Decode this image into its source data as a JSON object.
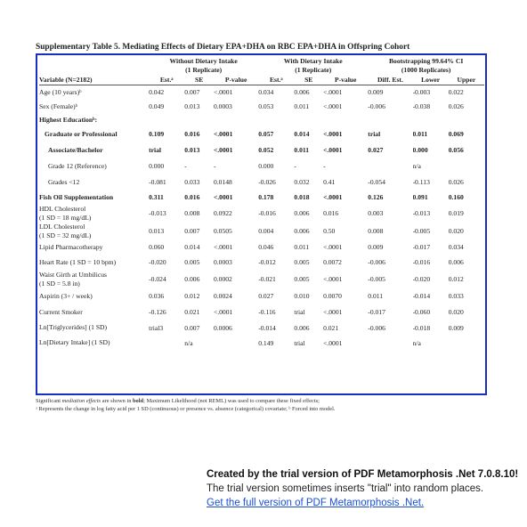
{
  "title": "Supplementary Table 5. Mediating Effects of Dietary EPA+DHA on RBC EPA+DHA in Offspring Cohort",
  "groups": [
    "Without Dietary Intake",
    "(1 Replicate)",
    "With Dietary Intake",
    "(1 Replicate)",
    "Bootstrapping 99.64% CI",
    "(1000 Replicates)"
  ],
  "columns": [
    "Variable (N=2182)",
    "Est.ᵃ",
    "SE",
    "P-value",
    "Est.ᵃ",
    "SE",
    "P-value",
    "Diff. Est.",
    "Lower",
    "Upper"
  ],
  "rows": [
    {
      "cells": [
        "Age (10 years)ᵇ",
        "0.042",
        "0.007",
        "<.0001",
        "0.034",
        "0.006",
        "<.0001",
        "0.009",
        "-0.003",
        "0.022"
      ]
    },
    {
      "cells": [
        "Sex (Female)ᵇ",
        "0.049",
        "0.013",
        "0.0003",
        "0.053",
        "0.011",
        "<.0001",
        "-0.006",
        "-0.038",
        "0.026"
      ]
    },
    {
      "cells": [
        "Highest Educationᵇ:",
        "",
        "",
        "",
        "",
        "",
        "",
        "",
        "",
        ""
      ],
      "bold": true
    },
    {
      "cells": [
        "Graduate or Professional",
        "0.109",
        "0.016",
        "<.0001",
        "0.057",
        "0.014",
        "<.0001",
        "trial",
        "0.011",
        "0.069"
      ],
      "bold": true,
      "indent": 1
    },
    {
      "cells": [
        "Associate/Bachelor",
        "trial",
        "0.013",
        "<.0001",
        "0.052",
        "0.011",
        "<.0001",
        "0.027",
        "0.000",
        "0.056"
      ],
      "bold": true,
      "indent": 2
    },
    {
      "cells": [
        "Grade 12 (Reference)",
        "0.000",
        "-",
        "-",
        "0.000",
        "-",
        "-",
        "",
        "n/a",
        ""
      ],
      "indent": 2
    },
    {
      "cells": [
        "Grades <12",
        "-0.081",
        "0.033",
        "0.0148",
        "-0.026",
        "0.032",
        "0.41",
        "-0.054",
        "-0.113",
        "0.026"
      ],
      "indent": 2
    },
    {
      "cells": [
        "Fish Oil Supplementation",
        "0.311",
        "0.016",
        "<.0001",
        "0.178",
        "0.018",
        "<.0001",
        "0.126",
        "0.091",
        "0.160"
      ],
      "bold": true
    },
    {
      "cells": [
        "HDL Cholesterol\n   (1 SD = 18 mg/dL)",
        "-0.013",
        "0.008",
        "0.0922",
        "-0.016",
        "0.006",
        "0.016",
        "0.003",
        "-0.013",
        "0.019"
      ]
    },
    {
      "cells": [
        "LDL Cholesterol\n   (1 SD = 32 mg/dL)",
        "0.013",
        "0.007",
        "0.0505",
        "0.004",
        "0.006",
        "0.50",
        "0.008",
        "-0.005",
        "0.020"
      ]
    },
    {
      "cells": [
        "Lipid Pharmacotherapy",
        "0.060",
        "0.014",
        "<.0001",
        "0.046",
        "0.011",
        "<.0001",
        "0.009",
        "-0.017",
        "0.034"
      ]
    },
    {
      "cells": [
        "Heart Rate (1 SD = 10 bpm)",
        "-0.020",
        "0.005",
        "0.0003",
        "-0.012",
        "0.005",
        "0.0072",
        "-0.006",
        "-0.016",
        "0.006"
      ]
    },
    {
      "cells": [
        "Waist Girth at Umbilicus\n   (1 SD = 5.8 in)",
        "-0.024",
        "0.006",
        "0.0002",
        "-0.021",
        "0.005",
        "<.0001",
        "-0.005",
        "-0.020",
        "0.012"
      ]
    },
    {
      "cells": [
        "Aspirin (3+ / week)",
        "0.036",
        "0.012",
        "0.0024",
        "0.027",
        "0.010",
        "0.0070",
        "0.011",
        "-0.014",
        "0.033"
      ]
    },
    {
      "cells": [
        "Current Smoker",
        "-0.126",
        "0.021",
        "<.0001",
        "-0.116",
        "trial",
        "<.0001",
        "-0.017",
        "-0.060",
        "0.020"
      ]
    },
    {
      "cells": [
        "Ln[Triglycerides] (1 SD)",
        "trial3",
        "0.007",
        "0.0006",
        "-0.014",
        "0.006",
        "0.021",
        "-0.006",
        "-0.018",
        "0.009"
      ]
    },
    {
      "cells": [
        "Ln[Dietary Intake] (1 SD)",
        "",
        "n/a",
        "",
        "0.149",
        "trial",
        "<.0001",
        "",
        "n/a",
        ""
      ]
    }
  ],
  "footnotes": {
    "line1_prefix": "Significant ",
    "line1_italic": "mediation effects",
    "line1_mid": " are shown in ",
    "line1_bold": "bold",
    "line1_suffix": "; Maximum Likelihood (not REML) was used to compare these fixed effects;",
    "line2": "ᵃ Represents the change in log fatty acid per 1 SD (continuous) or presence vs. absence (categorical) covariate; ᵇ Forced into model."
  },
  "trial_notice": {
    "line1": "Created by the trial version of PDF Metamorphosis .Net 7.0.8.10!",
    "line2": "The trial version sometimes inserts \"trial\" into random places.",
    "link": "Get the full version of PDF Metamorphosis .Net."
  },
  "colors": {
    "frame": "#1a2fbf",
    "link": "#1a4fd6"
  }
}
